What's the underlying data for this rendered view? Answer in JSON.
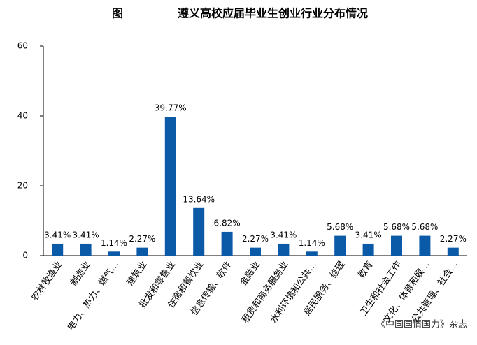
{
  "chart_data": {
    "type": "bar",
    "title_prefix": "图",
    "title": "遵义高校应届毕业生创业行业分布情况",
    "categories": [
      "农林牧渔业",
      "制造业",
      "电力、热力、燃气…",
      "建筑业",
      "批发和零售业",
      "住宿和餐饮业",
      "信息传输、软件",
      "金融业",
      "租赁和商务服务业",
      "水利环境和公共…",
      "居民服务、修理",
      "教育",
      "卫生和社会工作",
      "文化、体育和娱…",
      "公共管理、社会…"
    ],
    "values": [
      3.41,
      3.41,
      1.14,
      2.27,
      39.77,
      13.64,
      6.82,
      2.27,
      3.41,
      1.14,
      5.68,
      3.41,
      5.68,
      5.68,
      2.27
    ],
    "value_labels": [
      "3.41%",
      "3.41%",
      "1.14%",
      "2.27%",
      "39.77%",
      "13.64%",
      "6.82%",
      "2.27%",
      "3.41%",
      "1.14%",
      "5.68%",
      "3.41%",
      "5.68%",
      "5.68%",
      "2.27%"
    ],
    "color": "#0b5aa8",
    "ylim": [
      0,
      60
    ],
    "yticks": [
      0,
      20,
      40,
      60
    ],
    "grid": false,
    "annotation": "《中国国情国力》杂志"
  }
}
